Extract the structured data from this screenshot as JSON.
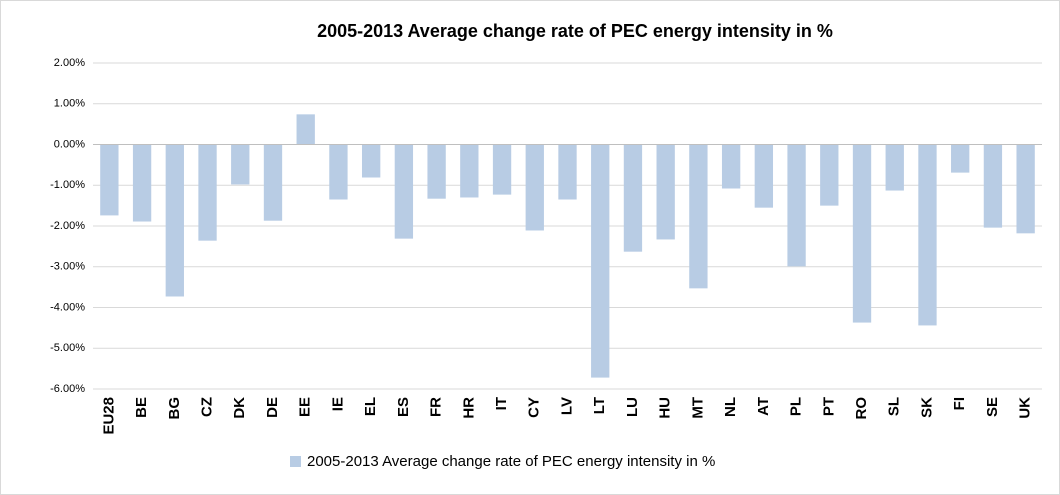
{
  "chart_data": {
    "type": "bar",
    "title": "2005-2013 Average change rate of PEC energy intensity in %",
    "categories": [
      "EU28",
      "BE",
      "BG",
      "CZ",
      "DK",
      "DE",
      "EE",
      "IE",
      "EL",
      "ES",
      "FR",
      "HR",
      "IT",
      "CY",
      "LV",
      "LT",
      "LU",
      "HU",
      "MT",
      "NL",
      "AT",
      "PL",
      "PT",
      "RO",
      "SL",
      "SK",
      "FI",
      "SE",
      "UK"
    ],
    "series": [
      {
        "name": "2005-2013 Average change rate of PEC energy intensity in %",
        "color": "#b8cce4",
        "values": [
          -1.74,
          -1.89,
          -3.73,
          -2.36,
          -0.98,
          -1.87,
          0.74,
          -1.35,
          -0.81,
          -2.31,
          -1.33,
          -1.3,
          -1.23,
          -2.11,
          -1.35,
          -5.72,
          -2.63,
          -2.33,
          -3.53,
          -1.08,
          -1.55,
          -2.99,
          -1.5,
          -4.37,
          -1.13,
          -4.44,
          -0.69,
          -2.04,
          -2.18
        ]
      }
    ],
    "ylim": [
      -6,
      2
    ],
    "yticks": [
      {
        "value": -6,
        "label": "-6.00%"
      },
      {
        "value": -5,
        "label": "-5.00%"
      },
      {
        "value": -4,
        "label": "-4.00%"
      },
      {
        "value": -3,
        "label": "-3.00%"
      },
      {
        "value": -2,
        "label": "-2.00%"
      },
      {
        "value": -1,
        "label": "-1.00%"
      },
      {
        "value": 0,
        "label": "0.00%"
      },
      {
        "value": 1,
        "label": "1.00%"
      },
      {
        "value": 2,
        "label": "2.00%"
      }
    ],
    "grid": true,
    "legend": "bottom"
  }
}
